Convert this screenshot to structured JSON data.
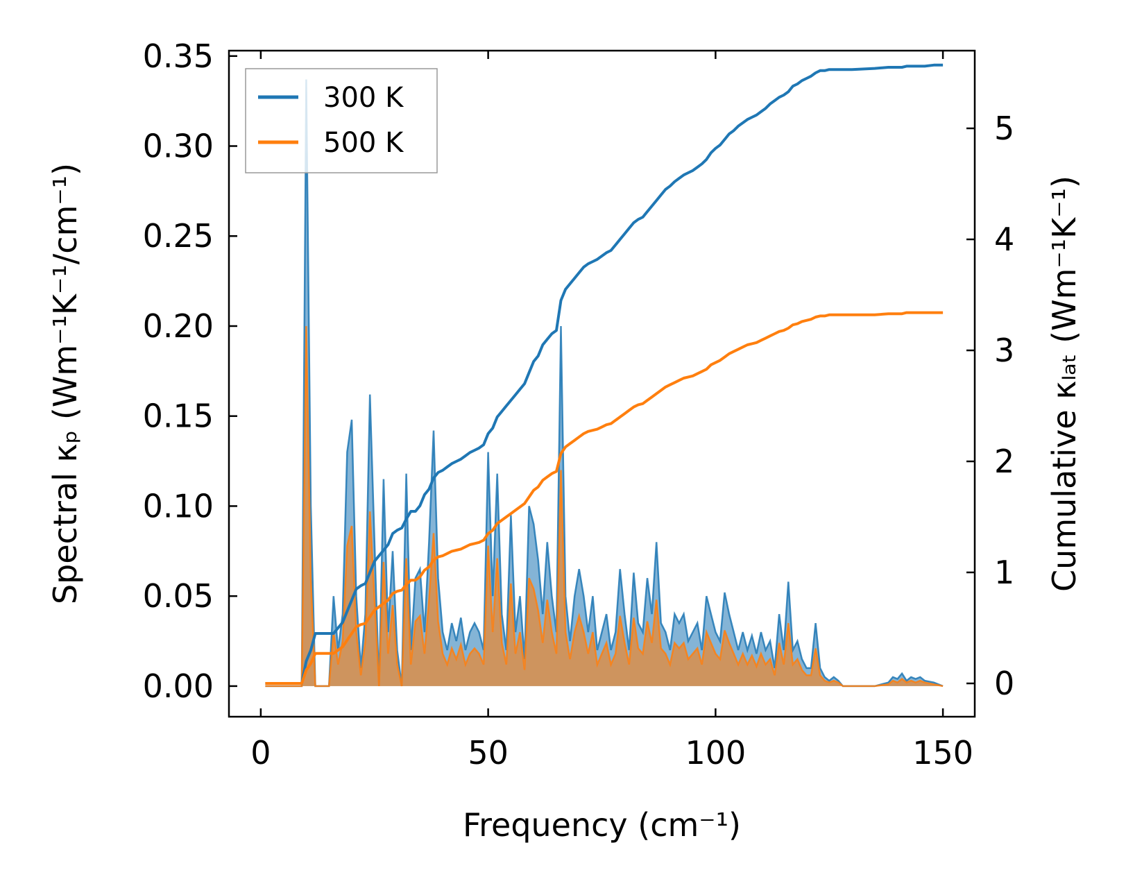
{
  "chart_data": {
    "type": "line",
    "xlabel": "Frequency (cm⁻¹)",
    "ylabel_left": "Spectral κₚ (Wm⁻¹K⁻¹/cm⁻¹)",
    "ylabel_right": "Cumulative κₗₐₜ (Wm⁻¹K⁻¹)",
    "xlim": [
      -7,
      157
    ],
    "ylim_left": [
      -0.017,
      0.353
    ],
    "ylim_right": [
      -0.3,
      5.7
    ],
    "xticks": [
      0,
      50,
      100,
      150
    ],
    "xtick_labels": [
      "0",
      "50",
      "100",
      "150"
    ],
    "yticks_left": [
      0.0,
      0.05,
      0.1,
      0.15,
      0.2,
      0.25,
      0.3,
      0.35
    ],
    "ytick_labels_left": [
      "0.00",
      "0.05",
      "0.10",
      "0.15",
      "0.20",
      "0.25",
      "0.30",
      "0.35"
    ],
    "yticks_right": [
      0,
      1,
      2,
      3,
      4,
      5
    ],
    "ytick_labels_right": [
      "0",
      "1",
      "2",
      "3",
      "4",
      "5"
    ],
    "legend": {
      "position": "top-left",
      "entries": [
        "300 K",
        "500 K"
      ]
    },
    "colors": {
      "300 K": "#1f77b4",
      "500 K": "#ff7f0e"
    },
    "spectral": {
      "x": [
        1,
        9,
        10,
        11,
        12,
        13,
        15,
        16,
        17,
        18,
        19,
        20,
        21,
        22,
        23,
        24,
        25,
        26,
        27,
        28,
        29,
        30,
        31,
        32,
        33,
        34,
        35,
        36,
        37,
        38,
        39,
        40,
        41,
        42,
        43,
        44,
        45,
        46,
        47,
        48,
        49,
        50,
        51,
        52,
        53,
        54,
        55,
        56,
        57,
        58,
        59,
        60,
        61,
        62,
        63,
        64,
        65,
        66,
        67,
        68,
        69,
        70,
        71,
        72,
        73,
        74,
        75,
        76,
        77,
        78,
        79,
        80,
        81,
        82,
        83,
        84,
        85,
        86,
        87,
        88,
        89,
        90,
        91,
        92,
        93,
        94,
        95,
        96,
        97,
        98,
        99,
        100,
        101,
        102,
        103,
        104,
        105,
        106,
        107,
        108,
        109,
        110,
        111,
        112,
        113,
        114,
        115,
        116,
        117,
        118,
        119,
        120,
        121,
        122,
        123,
        124,
        125,
        126,
        127,
        128,
        130,
        135,
        138,
        139,
        140,
        141,
        142,
        143,
        144,
        145,
        146,
        148,
        150
      ],
      "series": [
        {
          "name": "300 K",
          "values": [
            0,
            0,
            0.337,
            0.1,
            0,
            0,
            0,
            0.05,
            0.02,
            0.04,
            0.13,
            0.148,
            0.05,
            0.01,
            0.04,
            0.162,
            0.08,
            0,
            0.115,
            0.03,
            0.075,
            0.02,
            0,
            0.118,
            0.02,
            0.06,
            0.065,
            0.03,
            0.08,
            0.142,
            0.06,
            0.03,
            0.02,
            0.035,
            0.025,
            0.038,
            0.02,
            0.03,
            0.035,
            0.03,
            0.02,
            0.13,
            0.05,
            0.118,
            0.04,
            0.02,
            0.095,
            0.03,
            0.05,
            0.015,
            0.1,
            0.09,
            0.07,
            0.04,
            0.08,
            0.05,
            0.03,
            0.2,
            0.05,
            0.025,
            0.05,
            0.065,
            0.05,
            0.03,
            0.05,
            0.02,
            0.03,
            0.04,
            0.02,
            0.03,
            0.065,
            0.04,
            0.02,
            0.063,
            0.035,
            0.03,
            0.06,
            0.04,
            0.08,
            0.035,
            0.03,
            0.02,
            0.04,
            0.035,
            0.04,
            0.025,
            0.03,
            0.035,
            0.02,
            0.05,
            0.04,
            0.03,
            0.025,
            0.052,
            0.04,
            0.03,
            0.02,
            0.03,
            0.02,
            0.028,
            0.018,
            0.03,
            0.02,
            0.025,
            0.01,
            0.04,
            0.02,
            0.058,
            0.02,
            0.025,
            0.015,
            0.01,
            0.01,
            0.035,
            0.01,
            0.005,
            0.003,
            0.005,
            0.003,
            0,
            0,
            0,
            0.002,
            0.005,
            0.004,
            0.007,
            0.003,
            0.005,
            0.004,
            0.005,
            0.003,
            0.002,
            0
          ],
          "cumulative": [
            0,
            0,
            0.2,
            0.3,
            0.45,
            0.45,
            0.45,
            0.45,
            0.5,
            0.55,
            0.65,
            0.75,
            0.85,
            0.88,
            0.9,
            1.0,
            1.1,
            1.15,
            1.2,
            1.25,
            1.35,
            1.38,
            1.4,
            1.48,
            1.55,
            1.55,
            1.6,
            1.7,
            1.75,
            1.85,
            1.9,
            1.92,
            1.95,
            1.98,
            2.0,
            2.02,
            2.05,
            2.08,
            2.1,
            2.12,
            2.15,
            2.25,
            2.3,
            2.4,
            2.45,
            2.5,
            2.55,
            2.6,
            2.65,
            2.7,
            2.8,
            2.9,
            2.95,
            3.05,
            3.1,
            3.15,
            3.18,
            3.45,
            3.55,
            3.6,
            3.65,
            3.7,
            3.75,
            3.78,
            3.8,
            3.82,
            3.85,
            3.88,
            3.9,
            3.95,
            4.0,
            4.05,
            4.1,
            4.15,
            4.18,
            4.2,
            4.25,
            4.3,
            4.35,
            4.4,
            4.45,
            4.48,
            4.52,
            4.55,
            4.58,
            4.6,
            4.62,
            4.65,
            4.68,
            4.72,
            4.78,
            4.82,
            4.85,
            4.9,
            4.95,
            4.98,
            5.02,
            5.05,
            5.08,
            5.1,
            5.12,
            5.15,
            5.18,
            5.22,
            5.25,
            5.28,
            5.3,
            5.33,
            5.38,
            5.4,
            5.43,
            5.45,
            5.47,
            5.5,
            5.52,
            5.52,
            5.53,
            5.53,
            5.53,
            5.53,
            5.53,
            5.54,
            5.55,
            5.55,
            5.55,
            5.55,
            5.56,
            5.56,
            5.56,
            5.56,
            5.56,
            5.57,
            5.57
          ]
        },
        {
          "name": "500 K",
          "values": [
            0,
            0,
            0.2,
            0.06,
            0,
            0,
            0,
            0.03,
            0.012,
            0.025,
            0.078,
            0.089,
            0.03,
            0.006,
            0.025,
            0.097,
            0.048,
            0,
            0.069,
            0.018,
            0.045,
            0.012,
            0,
            0.071,
            0.012,
            0.036,
            0.039,
            0.018,
            0.048,
            0.085,
            0.036,
            0.018,
            0.012,
            0.021,
            0.015,
            0.023,
            0.012,
            0.018,
            0.021,
            0.018,
            0.012,
            0.078,
            0.03,
            0.071,
            0.024,
            0.012,
            0.057,
            0.018,
            0.03,
            0.009,
            0.06,
            0.054,
            0.042,
            0.024,
            0.048,
            0.03,
            0.018,
            0.12,
            0.03,
            0.015,
            0.03,
            0.039,
            0.03,
            0.018,
            0.03,
            0.012,
            0.018,
            0.024,
            0.012,
            0.018,
            0.039,
            0.024,
            0.012,
            0.038,
            0.021,
            0.018,
            0.036,
            0.024,
            0.048,
            0.021,
            0.018,
            0.012,
            0.024,
            0.021,
            0.024,
            0.015,
            0.018,
            0.021,
            0.012,
            0.03,
            0.024,
            0.018,
            0.015,
            0.031,
            0.024,
            0.018,
            0.012,
            0.018,
            0.012,
            0.017,
            0.011,
            0.018,
            0.012,
            0.015,
            0.006,
            0.024,
            0.012,
            0.035,
            0.012,
            0.015,
            0.009,
            0.006,
            0.006,
            0.021,
            0.006,
            0.003,
            0.002,
            0.003,
            0.002,
            0,
            0,
            0,
            0.001,
            0.003,
            0.002,
            0.004,
            0.002,
            0.003,
            0.002,
            0.003,
            0.002,
            0.001,
            0
          ],
          "cumulative": [
            0,
            0,
            0.12,
            0.18,
            0.27,
            0.27,
            0.27,
            0.27,
            0.3,
            0.33,
            0.39,
            0.45,
            0.51,
            0.53,
            0.54,
            0.6,
            0.66,
            0.69,
            0.72,
            0.75,
            0.81,
            0.83,
            0.84,
            0.89,
            0.93,
            0.93,
            0.96,
            1.02,
            1.05,
            1.11,
            1.14,
            1.15,
            1.17,
            1.19,
            1.2,
            1.21,
            1.23,
            1.25,
            1.26,
            1.27,
            1.29,
            1.35,
            1.38,
            1.44,
            1.47,
            1.5,
            1.53,
            1.56,
            1.59,
            1.62,
            1.68,
            1.74,
            1.77,
            1.83,
            1.86,
            1.89,
            1.91,
            2.07,
            2.13,
            2.16,
            2.19,
            2.22,
            2.25,
            2.27,
            2.28,
            2.29,
            2.31,
            2.33,
            2.34,
            2.37,
            2.4,
            2.43,
            2.46,
            2.49,
            2.51,
            2.52,
            2.55,
            2.58,
            2.61,
            2.64,
            2.67,
            2.69,
            2.71,
            2.73,
            2.75,
            2.76,
            2.77,
            2.79,
            2.81,
            2.83,
            2.87,
            2.89,
            2.91,
            2.94,
            2.97,
            2.99,
            3.01,
            3.03,
            3.05,
            3.06,
            3.07,
            3.09,
            3.11,
            3.13,
            3.15,
            3.17,
            3.18,
            3.2,
            3.23,
            3.24,
            3.26,
            3.27,
            3.28,
            3.3,
            3.31,
            3.31,
            3.32,
            3.32,
            3.32,
            3.32,
            3.32,
            3.32,
            3.33,
            3.33,
            3.33,
            3.33,
            3.34,
            3.34,
            3.34,
            3.34,
            3.34,
            3.34,
            3.34
          ]
        }
      ]
    }
  }
}
